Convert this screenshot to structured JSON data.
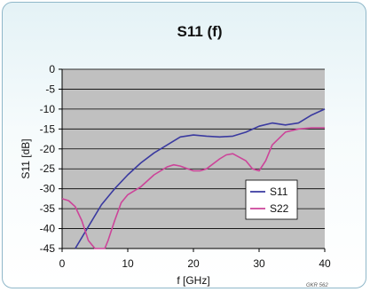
{
  "chart_data": {
    "type": "line",
    "title": "S11 (f)",
    "xlabel": "f [GHz]",
    "ylabel": "S11 [dB]",
    "xlim": [
      0,
      40
    ],
    "ylim": [
      -45,
      0
    ],
    "xticks": [
      0,
      10,
      20,
      30,
      40
    ],
    "yticks": [
      0,
      -5,
      -10,
      -15,
      -20,
      -25,
      -30,
      -35,
      -40,
      -45
    ],
    "grid": "horizontal",
    "background": "#c0c0c0",
    "legend_position": "lower-right",
    "credit": "GKR 562",
    "series": [
      {
        "name": "S11",
        "color": "#3a3aa0",
        "x": [
          2,
          4,
          6,
          8,
          10,
          12,
          14,
          16,
          18,
          20,
          22,
          24,
          26,
          28,
          30,
          32,
          34,
          36,
          38,
          40
        ],
        "y": [
          -45,
          -39.5,
          -34,
          -30,
          -26.5,
          -23.5,
          -21,
          -19,
          -17,
          -16.5,
          -16.8,
          -17,
          -16.8,
          -15.8,
          -14.3,
          -13.5,
          -14,
          -13.5,
          -11.5,
          -10
        ]
      },
      {
        "name": "S22",
        "color": "#cc4499",
        "x": [
          0,
          1,
          2,
          3,
          4,
          5,
          5.8,
          6.5,
          7,
          8,
          9,
          10,
          12,
          14,
          16,
          17,
          18,
          20,
          21,
          22,
          24,
          25,
          26,
          28,
          29,
          30,
          31,
          32,
          34,
          36,
          38,
          40
        ],
        "y": [
          -32.5,
          -33,
          -34.5,
          -38,
          -43,
          -45,
          -45,
          -45,
          -43,
          -38,
          -33.5,
          -31.5,
          -29.5,
          -26.5,
          -24.5,
          -24,
          -24.3,
          -25.5,
          -25.5,
          -25,
          -22.5,
          -21.5,
          -21.2,
          -23,
          -25,
          -25.5,
          -23,
          -19,
          -15.8,
          -15,
          -14.7,
          -14.7
        ]
      }
    ]
  }
}
